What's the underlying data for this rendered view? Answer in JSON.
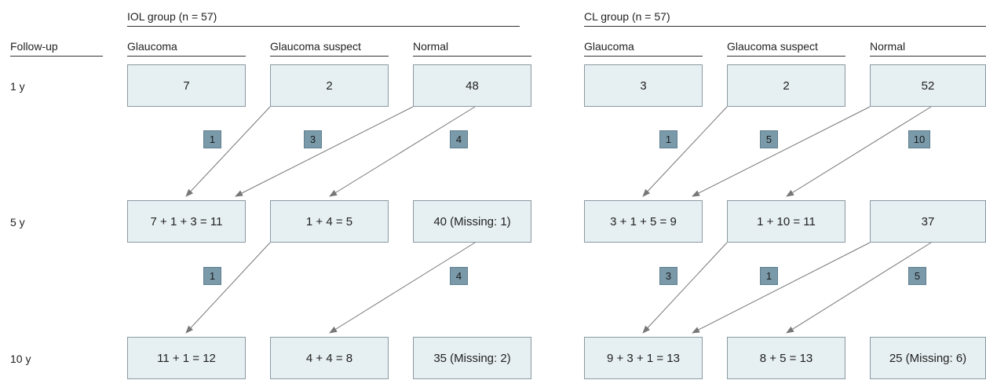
{
  "header": {
    "followup_label": "Follow-up",
    "iol_group": "IOL group (n = 57)",
    "cl_group": "CL group (n = 57)",
    "iol_columns": [
      "Glaucoma",
      "Glaucoma suspect",
      "Normal"
    ],
    "cl_columns": [
      "Glaucoma",
      "Glaucoma suspect",
      "Normal"
    ]
  },
  "rows": [
    "1 y",
    "5 y",
    "10 y"
  ],
  "iol": {
    "y1": [
      "7",
      "2",
      "48"
    ],
    "y5": [
      "7 + 1 + 3 = 11",
      "1 + 4 = 5",
      "40 (Missing: 1)"
    ],
    "y10": [
      "11 + 1 = 12",
      "4 + 4 = 8",
      "35 (Missing: 2)"
    ],
    "transitions_1_5": [
      "1",
      "3",
      "4"
    ],
    "transitions_5_10": [
      "1",
      "4"
    ]
  },
  "cl": {
    "y1": [
      "3",
      "2",
      "52"
    ],
    "y5": [
      "3 + 1 + 5 = 9",
      "1 + 10 = 11",
      "37"
    ],
    "y10": [
      "9 + 3 + 1 = 13",
      "8 + 5 = 13",
      "25 (Missing: 6)"
    ],
    "transitions_1_5": [
      "1",
      "5",
      "10"
    ],
    "transitions_5_10": [
      "3",
      "1",
      "5"
    ]
  },
  "colors": {
    "box_fill": "#e6eff2",
    "badge_fill": "#7a9aaa",
    "arrow": "#777777"
  }
}
